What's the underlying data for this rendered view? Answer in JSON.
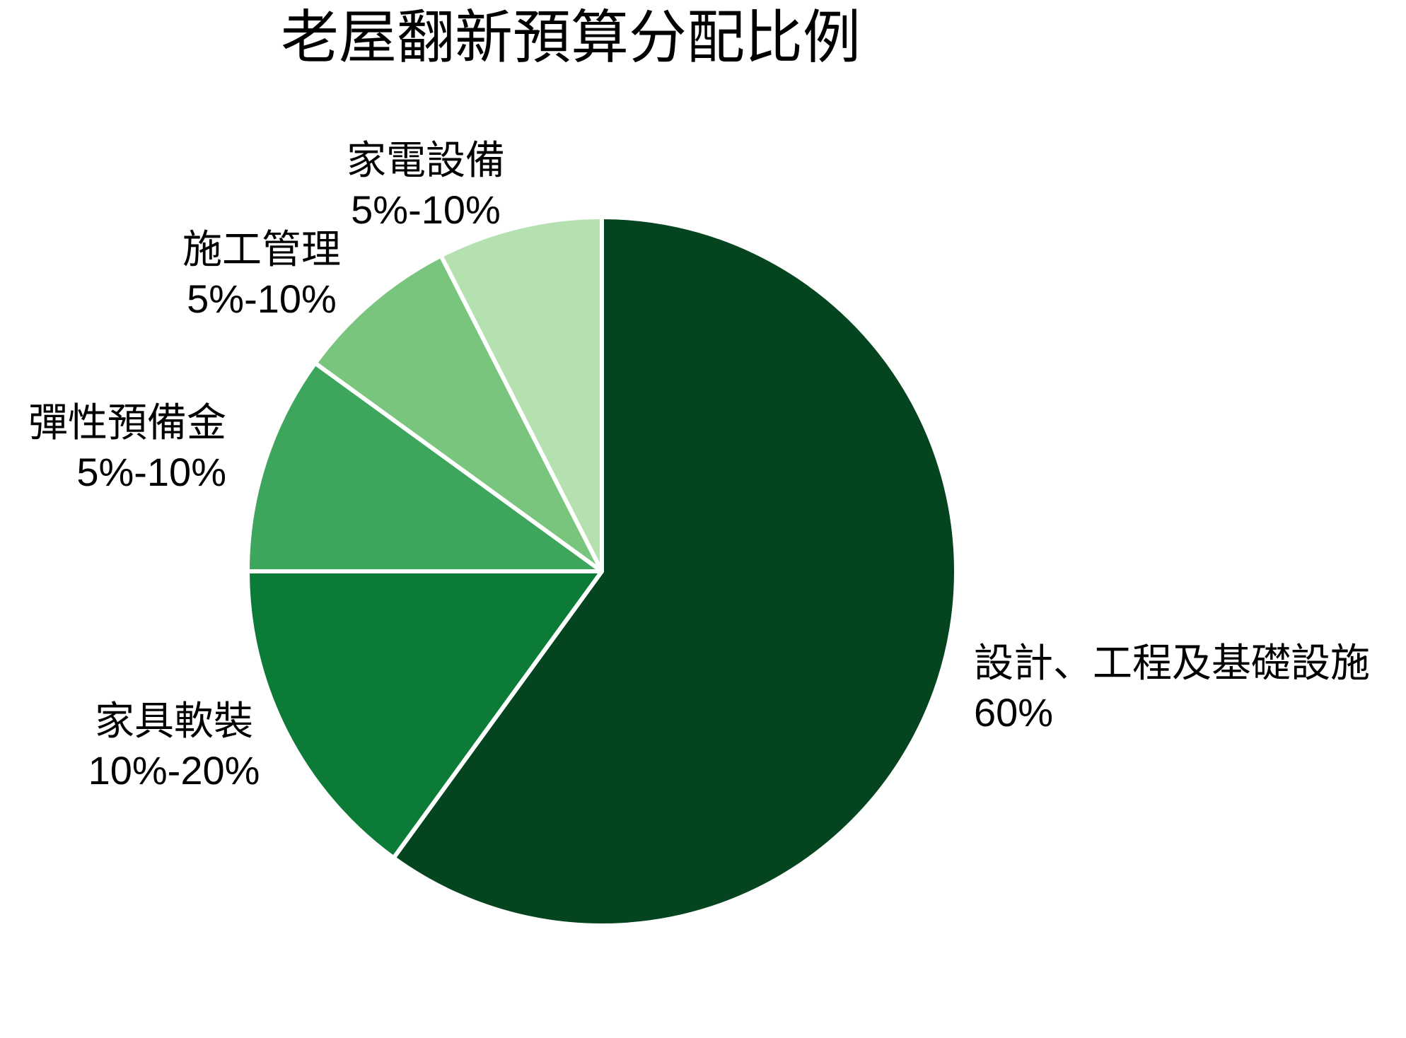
{
  "chart_data": {
    "type": "pie",
    "title": "老屋翻新預算分配比例",
    "direction": "clockwise",
    "start_angle_deg": 0,
    "legend_position": "none",
    "labels_outside": true,
    "divider_color": "#ffffff",
    "slices": [
      {
        "label": "設計、工程及基礎設施",
        "range_label": "60%",
        "value": 60,
        "color": "#04441e"
      },
      {
        "label": "家具軟裝",
        "range_label": "10%-20%",
        "value": 15,
        "color": "#0c7b37"
      },
      {
        "label": "彈性預備金",
        "range_label": "5%-10%",
        "value": 10,
        "color": "#3ea55d"
      },
      {
        "label": "施工管理",
        "range_label": "5%-10%",
        "value": 7.5,
        "color": "#7ac57d"
      },
      {
        "label": "家電設備",
        "range_label": "5%-10%",
        "value": 7.5,
        "color": "#b5e0b0"
      }
    ]
  }
}
